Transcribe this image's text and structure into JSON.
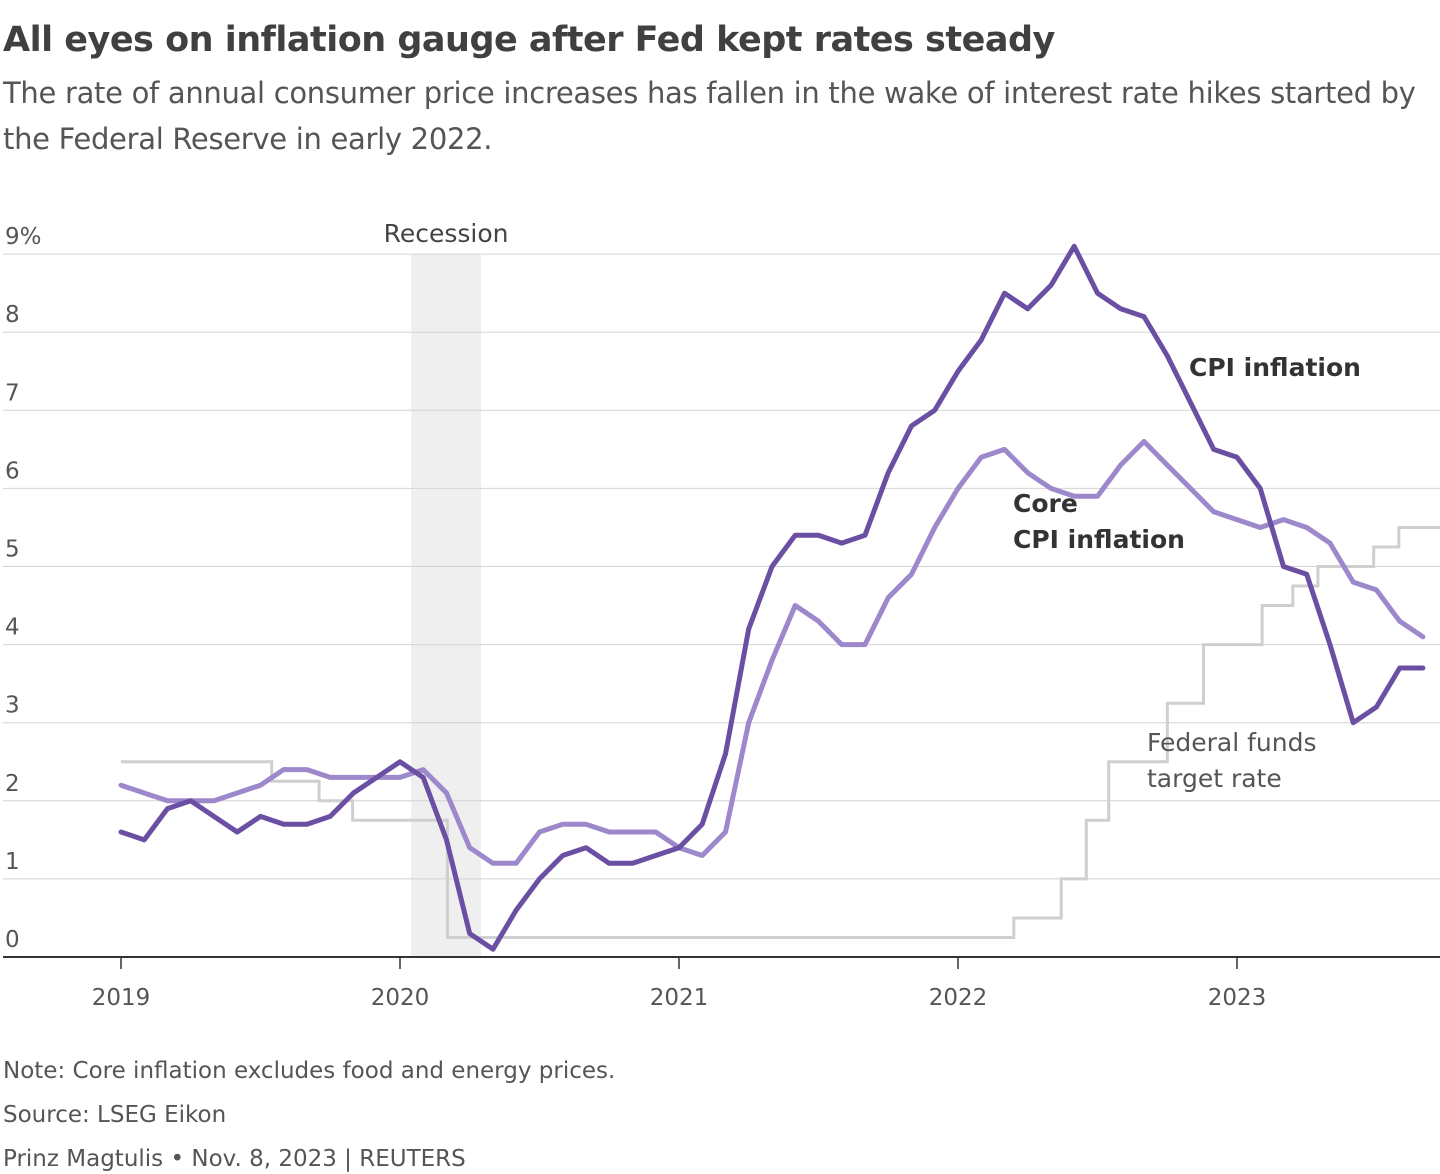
{
  "title": "All eyes on inflation gauge after Fed kept rates steady",
  "subtitle": "The rate of annual consumer price increases has fallen in the wake of interest rate hikes started by the Federal Reserve in early 2022.",
  "colors": {
    "cpi": "#6a4fa3",
    "core_cpi": "#9c88cb",
    "fed_funds": "#cfcfcf",
    "recession": "#efefef",
    "grid": "#d4d4d4",
    "axis": "#333333",
    "text": "#555555"
  },
  "chart_data": {
    "type": "line",
    "x_unit": "fractional year",
    "xlim": [
      2018.6,
      2023.85
    ],
    "ylim": [
      0,
      9
    ],
    "y_ticks": [
      0,
      1,
      2,
      3,
      4,
      5,
      6,
      7,
      8,
      9
    ],
    "y_tick_labels": [
      "0",
      "1",
      "2",
      "3",
      "4",
      "5",
      "6",
      "7",
      "8",
      "9%"
    ],
    "x_ticks": [
      2019,
      2020,
      2021,
      2022,
      2023
    ],
    "x_tick_labels": [
      "2019",
      "2020",
      "2021",
      "2022",
      "2023"
    ],
    "grid": true,
    "recession": {
      "start": 2020.04,
      "end": 2020.29,
      "label": "Recession"
    },
    "series": [
      {
        "name": "CPI inflation",
        "label_lines": [
          "CPI inflation"
        ],
        "x_start": 2019.0,
        "step": 0.08333,
        "values": [
          1.6,
          1.5,
          1.9,
          2.0,
          1.8,
          1.6,
          1.8,
          1.7,
          1.7,
          1.8,
          2.1,
          2.3,
          2.5,
          2.3,
          1.5,
          0.3,
          0.1,
          0.6,
          1.0,
          1.3,
          1.4,
          1.2,
          1.2,
          1.3,
          1.4,
          1.7,
          2.6,
          4.2,
          5.0,
          5.4,
          5.4,
          5.3,
          5.4,
          6.2,
          6.8,
          7.0,
          7.5,
          7.9,
          8.5,
          8.3,
          8.6,
          9.1,
          8.5,
          8.3,
          8.2,
          7.7,
          7.1,
          6.5,
          6.4,
          6.0,
          5.0,
          4.9,
          4.0,
          3.0,
          3.2,
          3.7,
          3.7
        ]
      },
      {
        "name": "Core CPI inflation",
        "label_lines": [
          "Core",
          "CPI inflation"
        ],
        "x_start": 2019.0,
        "step": 0.08333,
        "values": [
          2.2,
          2.1,
          2.0,
          2.0,
          2.0,
          2.1,
          2.2,
          2.4,
          2.4,
          2.3,
          2.3,
          2.3,
          2.3,
          2.4,
          2.1,
          1.4,
          1.2,
          1.2,
          1.6,
          1.7,
          1.7,
          1.6,
          1.6,
          1.6,
          1.4,
          1.3,
          1.6,
          3.0,
          3.8,
          4.5,
          4.3,
          4.0,
          4.0,
          4.6,
          4.9,
          5.5,
          6.0,
          6.4,
          6.5,
          6.2,
          6.0,
          5.9,
          5.9,
          6.3,
          6.6,
          6.3,
          6.0,
          5.7,
          5.6,
          5.5,
          5.6,
          5.5,
          5.3,
          4.8,
          4.7,
          4.3,
          4.1
        ]
      },
      {
        "name": "Federal funds target rate",
        "label_lines": [
          "Federal funds",
          "target rate"
        ],
        "kind": "step",
        "points": [
          [
            2019.0,
            2.5
          ],
          [
            2019.54,
            2.25
          ],
          [
            2019.71,
            2.0
          ],
          [
            2019.83,
            1.75
          ],
          [
            2020.17,
            0.25
          ],
          [
            2022.2,
            0.5
          ],
          [
            2022.37,
            1.0
          ],
          [
            2022.46,
            1.75
          ],
          [
            2022.54,
            2.5
          ],
          [
            2022.75,
            3.25
          ],
          [
            2022.88,
            4.0
          ],
          [
            2023.09,
            4.5
          ],
          [
            2023.2,
            4.75
          ],
          [
            2023.29,
            5.0
          ],
          [
            2023.49,
            5.25
          ],
          [
            2023.58,
            5.5
          ],
          [
            2023.83,
            5.5
          ]
        ]
      }
    ]
  },
  "footer": {
    "note": "Note: Core inflation excludes food and energy prices.",
    "source": "Source: LSEG Eikon",
    "byline": "Prinz Magtulis • Nov. 8, 2023 | REUTERS"
  }
}
